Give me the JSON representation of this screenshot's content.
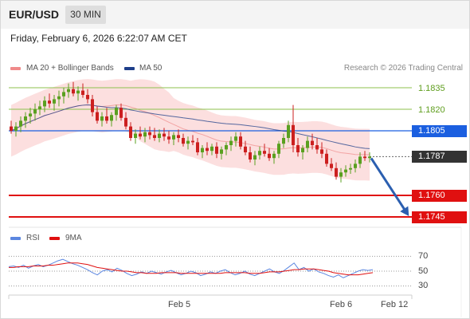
{
  "header": {
    "pair": "EUR/USD",
    "timeframe": "30 MIN",
    "datetime": "Friday, February 6, 2026 6:22:07 AM CET"
  },
  "legend": {
    "bollinger": "MA 20 + Bollinger Bands",
    "ma50": "MA 50",
    "credit": "Research © 2026 Trading Central",
    "rsi": "RSI",
    "ma9": "9MA"
  },
  "colors": {
    "bullish": "#5aa020",
    "bearish": "#cc1f1f",
    "bollinger": "#f08a8a",
    "bollinger_fill": "#fbd9d9",
    "ma50": "#1e3f8a",
    "resistance_green": "#8dc24d",
    "pivot_blue": "#1b5fe0",
    "support_red": "#e01010",
    "current": "#333333",
    "forecast_arrow": "#2b5fb0",
    "rsi": "#5b86e0",
    "ma9": "#e01010"
  },
  "levels": [
    {
      "value": "1.1835",
      "kind": "resistance"
    },
    {
      "value": "1.1820",
      "kind": "resistance"
    },
    {
      "value": "1.1805",
      "kind": "pivot"
    },
    {
      "value": "1.1787",
      "kind": "current"
    },
    {
      "value": "1.1760",
      "kind": "support"
    },
    {
      "value": "1.1745",
      "kind": "support"
    }
  ],
  "rsi_levels": [
    "70",
    "50",
    "30"
  ],
  "xaxis": [
    "Feb 5",
    "Feb 6",
    "Feb 12"
  ],
  "chart_data": {
    "type": "candlestick",
    "y_axis_levels": [
      1.1745,
      1.176,
      1.1787,
      1.1805,
      1.182,
      1.1835
    ],
    "current_price": 1.1787,
    "forecast_target": 1.1745,
    "x_ticks": [
      "Feb 5",
      "Feb 6",
      "Feb 12"
    ],
    "candles": [
      [
        1.1808,
        1.1812,
        1.1803,
        1.1805
      ],
      [
        1.1805,
        1.1811,
        1.1801,
        1.1808
      ],
      [
        1.1808,
        1.1815,
        1.1804,
        1.1812
      ],
      [
        1.1812,
        1.1818,
        1.1807,
        1.1815
      ],
      [
        1.1815,
        1.1821,
        1.181,
        1.1817
      ],
      [
        1.1817,
        1.1824,
        1.1812,
        1.182
      ],
      [
        1.182,
        1.1826,
        1.1816,
        1.1822
      ],
      [
        1.1822,
        1.1829,
        1.1818,
        1.1826
      ],
      [
        1.1826,
        1.1831,
        1.1821,
        1.1824
      ],
      [
        1.1824,
        1.183,
        1.1819,
        1.1827
      ],
      [
        1.1827,
        1.1833,
        1.1822,
        1.1829
      ],
      [
        1.1829,
        1.1835,
        1.1824,
        1.1832
      ],
      [
        1.1832,
        1.1838,
        1.1828,
        1.1834
      ],
      [
        1.1834,
        1.1839,
        1.1829,
        1.1831
      ],
      [
        1.1831,
        1.1836,
        1.1826,
        1.1833
      ],
      [
        1.1833,
        1.1838,
        1.1828,
        1.183
      ],
      [
        1.183,
        1.1834,
        1.1824,
        1.1827
      ],
      [
        1.1827,
        1.183,
        1.1815,
        1.1818
      ],
      [
        1.1818,
        1.1822,
        1.181,
        1.1812
      ],
      [
        1.1812,
        1.1818,
        1.1808,
        1.1815
      ],
      [
        1.1815,
        1.1821,
        1.181,
        1.1812
      ],
      [
        1.1812,
        1.1818,
        1.1808,
        1.1816
      ],
      [
        1.1816,
        1.1823,
        1.1812,
        1.1821
      ],
      [
        1.1821,
        1.1824,
        1.1812,
        1.1814
      ],
      [
        1.1814,
        1.1818,
        1.1806,
        1.1808
      ],
      [
        1.1808,
        1.1811,
        1.1798,
        1.18
      ],
      [
        1.18,
        1.1806,
        1.1796,
        1.1803
      ],
      [
        1.1803,
        1.1808,
        1.1799,
        1.1801
      ],
      [
        1.1801,
        1.1807,
        1.1797,
        1.1804
      ],
      [
        1.1804,
        1.1808,
        1.1799,
        1.1802
      ],
      [
        1.1802,
        1.1807,
        1.1798,
        1.18
      ],
      [
        1.18,
        1.1806,
        1.1797,
        1.1803
      ],
      [
        1.1803,
        1.1807,
        1.1798,
        1.1801
      ],
      [
        1.1801,
        1.1805,
        1.1796,
        1.1799
      ],
      [
        1.1799,
        1.1804,
        1.1795,
        1.1802
      ],
      [
        1.1802,
        1.1806,
        1.1797,
        1.18
      ],
      [
        1.18,
        1.1803,
        1.1794,
        1.1796
      ],
      [
        1.1796,
        1.1801,
        1.1792,
        1.1798
      ],
      [
        1.1798,
        1.1802,
        1.1795,
        1.1797
      ],
      [
        1.1797,
        1.18,
        1.1788,
        1.179
      ],
      [
        1.179,
        1.1795,
        1.1786,
        1.1793
      ],
      [
        1.1793,
        1.1797,
        1.1788,
        1.1791
      ],
      [
        1.1791,
        1.1796,
        1.1788,
        1.1794
      ],
      [
        1.1794,
        1.1797,
        1.1786,
        1.1789
      ],
      [
        1.1789,
        1.1794,
        1.1785,
        1.1792
      ],
      [
        1.1792,
        1.1797,
        1.1788,
        1.1795
      ],
      [
        1.1795,
        1.1801,
        1.1791,
        1.1798
      ],
      [
        1.1798,
        1.1804,
        1.1794,
        1.1801
      ],
      [
        1.1801,
        1.1804,
        1.1792,
        1.1794
      ],
      [
        1.1794,
        1.1798,
        1.1788,
        1.179
      ],
      [
        1.179,
        1.1794,
        1.1783,
        1.1785
      ],
      [
        1.1785,
        1.1791,
        1.1781,
        1.1788
      ],
      [
        1.1788,
        1.1794,
        1.1785,
        1.1791
      ],
      [
        1.1791,
        1.1796,
        1.1787,
        1.1789
      ],
      [
        1.1789,
        1.1793,
        1.1784,
        1.1786
      ],
      [
        1.1786,
        1.1791,
        1.1782,
        1.1789
      ],
      [
        1.1789,
        1.1798,
        1.1786,
        1.1796
      ],
      [
        1.1796,
        1.1803,
        1.1793,
        1.18
      ],
      [
        1.18,
        1.1812,
        1.1797,
        1.1809
      ],
      [
        1.1809,
        1.1823,
        1.179,
        1.1795
      ],
      [
        1.1795,
        1.18,
        1.1787,
        1.179
      ],
      [
        1.179,
        1.1795,
        1.1785,
        1.1793
      ],
      [
        1.1793,
        1.1801,
        1.179,
        1.1798
      ],
      [
        1.1798,
        1.1803,
        1.1792,
        1.1795
      ],
      [
        1.1795,
        1.18,
        1.1789,
        1.1792
      ],
      [
        1.1792,
        1.1797,
        1.1786,
        1.1789
      ],
      [
        1.1789,
        1.1792,
        1.178,
        1.1782
      ],
      [
        1.1782,
        1.1786,
        1.1777,
        1.1779
      ],
      [
        1.1779,
        1.1783,
        1.1771,
        1.1773
      ],
      [
        1.1773,
        1.1779,
        1.1769,
        1.1776
      ],
      [
        1.1776,
        1.1781,
        1.1773,
        1.1778
      ],
      [
        1.1778,
        1.1782,
        1.1775,
        1.1779
      ],
      [
        1.1779,
        1.1785,
        1.1776,
        1.1782
      ],
      [
        1.1782,
        1.179,
        1.1779,
        1.1787
      ],
      [
        1.1787,
        1.1791,
        1.1784,
        1.1786
      ],
      [
        1.1786,
        1.179,
        1.1783,
        1.1787
      ]
    ]
  },
  "rsi_data": {
    "rsi": [
      56,
      57,
      55,
      58,
      54,
      57,
      59,
      56,
      58,
      61,
      64,
      66,
      63,
      60,
      58,
      55,
      52,
      48,
      45,
      50,
      52,
      49,
      54,
      51,
      47,
      44,
      46,
      49,
      47,
      50,
      48,
      46,
      49,
      51,
      48,
      45,
      47,
      50,
      48,
      44,
      46,
      49,
      47,
      50,
      52,
      48,
      45,
      47,
      50,
      46,
      44,
      47,
      50,
      53,
      49,
      47,
      51,
      56,
      61,
      52,
      55,
      50,
      53,
      49,
      47,
      44,
      42,
      45,
      41,
      44,
      47,
      50,
      52,
      51,
      52
    ],
    "ma9": [
      55,
      55,
      56,
      56,
      56,
      57,
      57,
      57,
      58,
      58,
      59,
      60,
      61,
      61,
      61,
      60,
      59,
      57,
      55,
      54,
      53,
      52,
      51,
      50,
      50,
      49,
      48,
      48,
      47,
      47,
      47,
      48,
      48,
      48,
      48,
      47,
      47,
      47,
      47,
      47,
      47,
      47,
      47,
      47,
      48,
      48,
      48,
      48,
      48,
      47,
      47,
      47,
      48,
      49,
      49,
      49,
      50,
      51,
      52,
      52,
      53,
      53,
      53,
      52,
      51,
      50,
      48,
      47,
      46,
      45,
      45,
      45,
      46,
      47,
      48
    ]
  }
}
